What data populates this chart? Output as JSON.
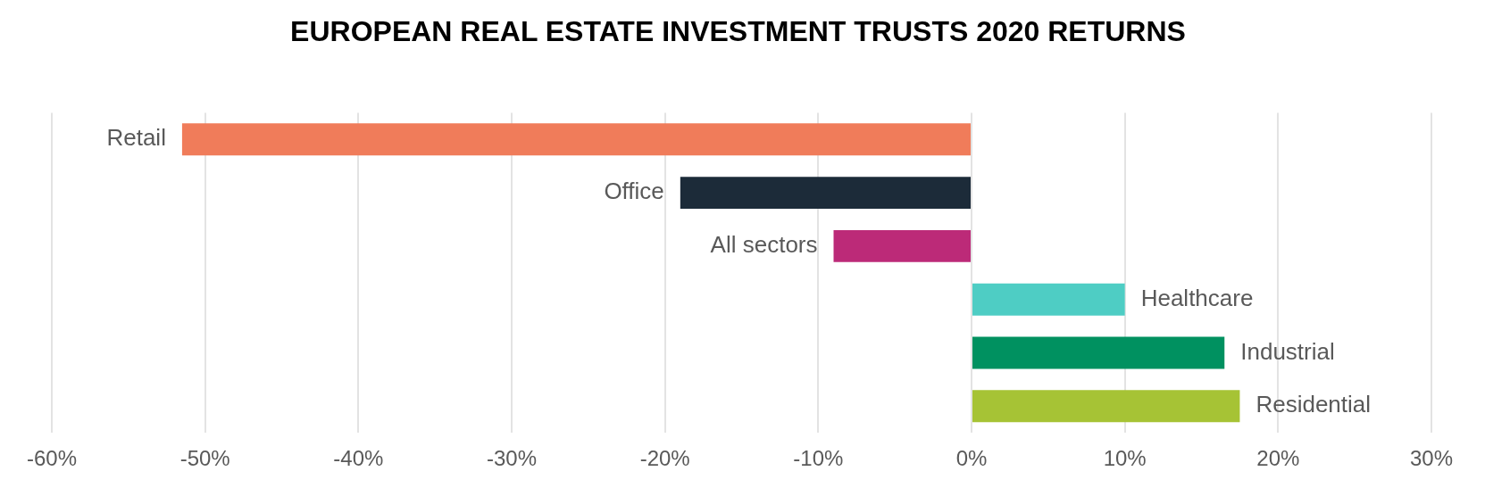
{
  "chart_data": {
    "type": "bar",
    "orientation": "horizontal",
    "title": "EUROPEAN REAL ESTATE INVESTMENT TRUSTS 2020 RETURNS",
    "categories": [
      "Retail",
      "Office",
      "All sectors",
      "Healthcare",
      "Industrial",
      "Residential"
    ],
    "values": [
      -51.5,
      -19,
      -9,
      10,
      16.5,
      17.5
    ],
    "colors": [
      "#f07c5a",
      "#1c2b39",
      "#bc2a78",
      "#4ecdc4",
      "#009160",
      "#a6c335"
    ],
    "xlim": [
      -60,
      30
    ],
    "xticks": [
      {
        "value": -60,
        "label": "-60%"
      },
      {
        "value": -50,
        "label": "-50%"
      },
      {
        "value": -40,
        "label": "-40%"
      },
      {
        "value": -30,
        "label": "-30%"
      },
      {
        "value": -20,
        "label": "-20%"
      },
      {
        "value": -10,
        "label": "-10%"
      },
      {
        "value": 0,
        "label": "0%"
      },
      {
        "value": 10,
        "label": "10%"
      },
      {
        "value": 20,
        "label": "20%"
      },
      {
        "value": 30,
        "label": "30%"
      }
    ],
    "grid": "x",
    "legend": false,
    "tick_labels": "x"
  }
}
